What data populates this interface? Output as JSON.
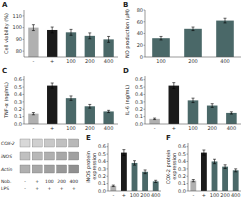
{
  "chart_data": [
    {
      "type": "bar",
      "title": "A",
      "categories": [
        "-",
        "+",
        "100",
        "200",
        "400"
      ],
      "values": [
        100,
        98,
        96,
        93,
        90
      ],
      "errors": [
        2.5,
        2.5,
        2.5,
        2.5,
        2.5
      ],
      "colors": [
        "#b0b0b0",
        "#1a1a1a",
        "#4a6868",
        "#4a6868",
        "#4a6868"
      ],
      "ylabel": "Cell viability (%)",
      "ylim": [
        75,
        115
      ],
      "yticks": [
        80,
        90,
        100,
        110
      ]
    },
    {
      "type": "bar",
      "title": "B",
      "categories": [
        "100",
        "200",
        "400"
      ],
      "values": [
        32,
        48,
        62
      ],
      "errors": [
        3,
        3,
        4
      ],
      "colors": [
        "#4a6868",
        "#4a6868",
        "#4a6868"
      ],
      "ylabel": "NO production (µM)",
      "ylim": [
        0,
        80
      ],
      "yticks": [
        0,
        20,
        40,
        60,
        80
      ]
    },
    {
      "type": "bar",
      "title": "C",
      "categories": [
        "-",
        "+",
        "100",
        "200",
        "400"
      ],
      "values": [
        0.14,
        0.52,
        0.35,
        0.24,
        0.17
      ],
      "errors": [
        0.015,
        0.035,
        0.03,
        0.025,
        0.015
      ],
      "colors": [
        "#b0b0b0",
        "#1a1a1a",
        "#4a6868",
        "#4a6868",
        "#4a6868"
      ],
      "ylabel": "TNF-α (ng/mL)",
      "ylim": [
        0,
        0.65
      ],
      "yticks": [
        {
          "value": 0,
          "label": "0.0"
        },
        0.1,
        0.2,
        0.3,
        0.4,
        0.5,
        0.6
      ]
    },
    {
      "type": "bar",
      "title": "D",
      "categories": [
        "-",
        "+",
        "100",
        "200",
        "400"
      ],
      "values": [
        0.07,
        0.52,
        0.32,
        0.25,
        0.15
      ],
      "errors": [
        0.01,
        0.04,
        0.03,
        0.025,
        0.015
      ],
      "colors": [
        "#b0b0b0",
        "#1a1a1a",
        "#4a6868",
        "#4a6868",
        "#4a6868"
      ],
      "ylabel": "IL-6 (ng/mL)",
      "ylim": [
        0,
        0.65
      ],
      "yticks": [
        {
          "value": 0,
          "label": "0.0"
        },
        0.1,
        0.2,
        0.3,
        0.4,
        0.5,
        0.6
      ]
    },
    {
      "type": "blot",
      "series": [
        {
          "name": "COX-2",
          "colors": [
            "#d8d8d8",
            "#d0d0d0",
            "#c8c8c8",
            "#c0c0c0",
            "#b8b8b8"
          ]
        },
        {
          "name": "iNOS",
          "colors": [
            "#c0c0c0",
            "#b8b8b8",
            "#b0b0b0",
            "#a8a8a8",
            "#a0a0a0"
          ]
        },
        {
          "name": "Actin",
          "colors": [
            "#b0b0b0",
            "#a8a8a8",
            "#a0a0a0",
            "#989898",
            "#909090"
          ]
        }
      ],
      "rows": [
        {
          "name": "Nob.",
          "labels": [
            "-",
            "+",
            "100",
            "200",
            "400"
          ]
        },
        {
          "name": "LPS",
          "labels": [
            "-",
            "+",
            "+",
            "+",
            "+"
          ]
        }
      ]
    },
    {
      "type": "bar",
      "title": "E",
      "categories": [
        "-",
        "+",
        "100",
        "200",
        "400"
      ],
      "values": [
        0.07,
        0.52,
        0.38,
        0.26,
        0.13
      ],
      "errors": [
        0.01,
        0.04,
        0.03,
        0.025,
        0.015
      ],
      "colors": [
        "#b0b0b0",
        "#1a1a1a",
        "#4a6868",
        "#4a6868",
        "#4a6868"
      ],
      "ylabel": "iNOS protein expression",
      "ylim": [
        0,
        0.65
      ],
      "yticks": [
        {
          "value": 0,
          "label": "0.0"
        },
        0.1,
        0.2,
        0.3,
        0.4,
        0.5,
        0.6
      ]
    },
    {
      "type": "bar",
      "title": "F",
      "categories": [
        "-",
        "+",
        "100",
        "200",
        "400"
      ],
      "values": [
        0.14,
        0.52,
        0.4,
        0.33,
        0.28
      ],
      "errors": [
        0.015,
        0.035,
        0.03,
        0.025,
        0.02
      ],
      "colors": [
        "#b0b0b0",
        "#1a1a1a",
        "#4a6868",
        "#4a6868",
        "#4a6868"
      ],
      "ylabel": "COX-2 protein expression",
      "ylim": [
        0,
        0.65
      ],
      "yticks": [
        {
          "value": 0,
          "label": "0.0"
        },
        0.1,
        0.2,
        0.3,
        0.4,
        0.5,
        0.6
      ]
    }
  ]
}
